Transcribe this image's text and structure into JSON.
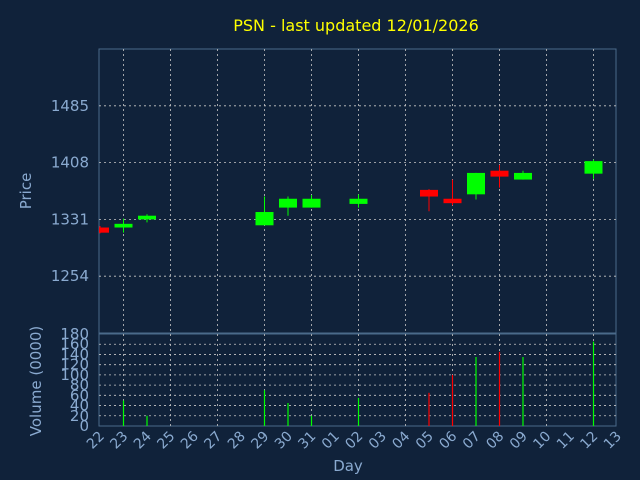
{
  "chart_data": [
    {
      "type": "candlestick",
      "title": "PSN - last updated 12/01/2026",
      "ylabel": "Price",
      "ylim": [
        1177,
        1562
      ],
      "yticks": [
        1254,
        1331,
        1408,
        1485
      ],
      "grid": true,
      "days": [
        "22",
        "23",
        "24",
        "25",
        "26",
        "27",
        "28",
        "29",
        "30",
        "31",
        "01",
        "02",
        "03",
        "04",
        "05",
        "06",
        "07",
        "08",
        "09",
        "10",
        "11",
        "12",
        "13"
      ],
      "candles": [
        {
          "day": "22",
          "open": 1320,
          "close": 1313,
          "high": 1322,
          "low": 1312
        },
        {
          "day": "23",
          "open": 1320,
          "close": 1325,
          "high": 1332,
          "low": 1313
        },
        {
          "day": "24",
          "open": 1331,
          "close": 1336,
          "high": 1338,
          "low": 1327
        },
        {
          "day": "29",
          "open": 1323,
          "close": 1341,
          "high": 1362,
          "low": 1323
        },
        {
          "day": "30",
          "open": 1347,
          "close": 1359,
          "high": 1362,
          "low": 1336
        },
        {
          "day": "31",
          "open": 1347,
          "close": 1359,
          "high": 1364,
          "low": 1347
        },
        {
          "day": "02",
          "open": 1352,
          "close": 1359,
          "high": 1365,
          "low": 1347
        },
        {
          "day": "05",
          "open": 1371,
          "close": 1362,
          "high": 1372,
          "low": 1342
        },
        {
          "day": "06",
          "open": 1359,
          "close": 1353,
          "high": 1385,
          "low": 1350
        },
        {
          "day": "07",
          "open": 1365,
          "close": 1394,
          "high": 1394,
          "low": 1358
        },
        {
          "day": "08",
          "open": 1397,
          "close": 1389,
          "high": 1405,
          "low": 1374
        },
        {
          "day": "09",
          "open": 1385,
          "close": 1394,
          "high": 1397,
          "low": 1385
        },
        {
          "day": "12",
          "open": 1393,
          "close": 1410,
          "high": 1412,
          "low": 1386
        }
      ],
      "colors": {
        "up": "#00ff00",
        "down": "#ff0000"
      }
    },
    {
      "type": "bar",
      "xlabel": "Day",
      "ylabel": "Volume (0000)",
      "ylim": [
        0,
        180
      ],
      "yticks": [
        0,
        20,
        40,
        60,
        80,
        100,
        120,
        140,
        160,
        180
      ],
      "grid": true,
      "bars": [
        {
          "day": "23",
          "value": 50,
          "color": "#00ff00"
        },
        {
          "day": "24",
          "value": 20,
          "color": "#00ff00"
        },
        {
          "day": "29",
          "value": 70,
          "color": "#00ff00"
        },
        {
          "day": "30",
          "value": 45,
          "color": "#00ff00"
        },
        {
          "day": "31",
          "value": 20,
          "color": "#00ff00"
        },
        {
          "day": "02",
          "value": 55,
          "color": "#00ff00"
        },
        {
          "day": "05",
          "value": 65,
          "color": "#ff0000"
        },
        {
          "day": "06",
          "value": 100,
          "color": "#ff0000"
        },
        {
          "day": "07",
          "value": 135,
          "color": "#00ff00"
        },
        {
          "day": "08",
          "value": 145,
          "color": "#ff0000"
        },
        {
          "day": "09",
          "value": 135,
          "color": "#00ff00"
        },
        {
          "day": "12",
          "value": 165,
          "color": "#00ff00"
        }
      ]
    }
  ],
  "style": {
    "background": "#10223a",
    "frame": "#4a6a8a",
    "grid": "#c8c8c8",
    "tick_text": "#8aaad0",
    "title_color": "#ffff00"
  }
}
